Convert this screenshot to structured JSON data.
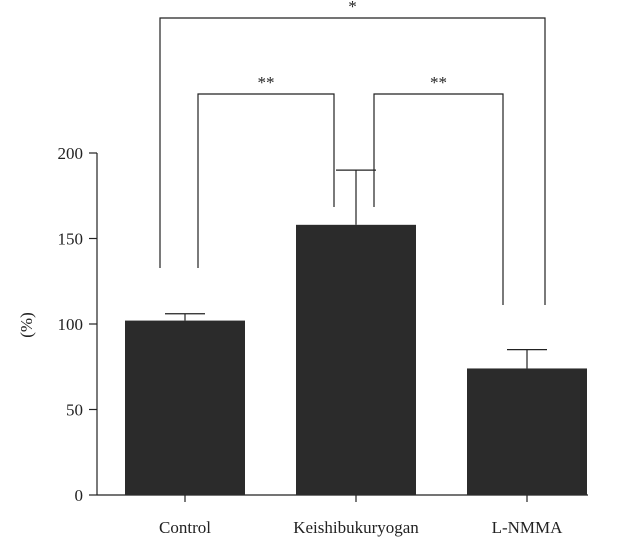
{
  "chart_data": {
    "type": "bar",
    "categories": [
      "Control",
      "Keishibukuryogan",
      "L-NMMA"
    ],
    "values": [
      102,
      158,
      74
    ],
    "error_upper": [
      106,
      190,
      85
    ],
    "ylabel": "(%)",
    "xlabel": "",
    "ylim": [
      0,
      200
    ],
    "yticks": [
      0,
      50,
      100,
      150,
      200
    ],
    "bar_color": "#2b2b2b",
    "grid": false,
    "significance": [
      {
        "from": 0,
        "to": 2,
        "label": "*"
      },
      {
        "from": 0,
        "to": 1,
        "label": "**"
      },
      {
        "from": 1,
        "to": 2,
        "label": "**"
      }
    ]
  }
}
